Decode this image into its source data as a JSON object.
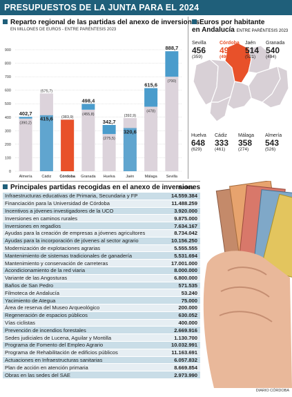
{
  "header": {
    "title": "PRESUPUESTOS DE LA JUNTA PARA EL 2024"
  },
  "chart_section": {
    "title": "Reparto regional de las partidas del anexo de inversiones",
    "subtitle": "EN MILLONES DE EUROS - ENTRE PARÉNTESIS 2023"
  },
  "chart_data": {
    "type": "bar",
    "categories": [
      "Almería",
      "Cádiz",
      "Córdoba",
      "Granada",
      "Huelva",
      "Jaén",
      "Málaga",
      "Sevilla"
    ],
    "series": [
      {
        "values": [
          402.7,
          415.6,
          381.8,
          498.4,
          342.7,
          320.6,
          615.6,
          888.7
        ]
      },
      {
        "values": [
          390.2,
          575.7,
          383.9,
          455.8,
          275.5,
          392.9,
          478,
          700
        ]
      }
    ],
    "value_labels": [
      "402,7",
      "415,6",
      "381,8",
      "498,4",
      "342,7",
      "320,6",
      "615,6",
      "888,7"
    ],
    "prev_labels": [
      "(390,2)",
      "(575,7)",
      "(383,9)",
      "(455,8)",
      "(275,5)",
      "(392,9)",
      "(478)",
      "(700)"
    ],
    "yticks": [
      "0",
      "100",
      "200",
      "300",
      "400",
      "500",
      "600",
      "700",
      "800",
      "900"
    ],
    "ylim": [
      0,
      900
    ],
    "grid": true,
    "colors": {
      "current": "#4a9ccc",
      "previous": "#dcd3db",
      "highlight": "#e8512a"
    }
  },
  "map_section": {
    "title_line1": "Euros por habitante",
    "title_line2": "en Andalucía",
    "subtitle": "ENTRE PARÉNTESIS 2023"
  },
  "cities": [
    {
      "name": "Sevilla",
      "value": "456",
      "prev": "(359)"
    },
    {
      "name": "Córdoba",
      "value": "494",
      "prev": "(496)"
    },
    {
      "name": "Jaén",
      "value": "514",
      "prev": "(521)"
    },
    {
      "name": "Granada",
      "value": "540",
      "prev": "(494)"
    },
    {
      "name": "Huelva",
      "value": "648",
      "prev": "(629)"
    },
    {
      "name": "Cádiz",
      "value": "333",
      "prev": "(461)"
    },
    {
      "name": "Málaga",
      "value": "358",
      "prev": "(274)"
    },
    {
      "name": "Almería",
      "value": "543",
      "prev": "(526)"
    }
  ],
  "table_section": {
    "title": "Principales partidas recogidas en el anexo de inversiones",
    "column_header": "EUROS"
  },
  "table_rows": [
    {
      "label": "Infraestructuras educativas de Primaria, Secundaria y FP",
      "amount": "14.559.384"
    },
    {
      "label": "Financiación para la Universidad de Córdoba",
      "amount": "11.488.259"
    },
    {
      "label": "Incentivos a jóvenes investigadores de la UCO",
      "amount": "3.920.000"
    },
    {
      "label": "Inversiones en caminos rurales",
      "amount": "9.875.000"
    },
    {
      "label": "Inversiones en regadíos",
      "amount": "7.634.167"
    },
    {
      "label": "Ayudas para la creación de empresas a jóvenes agricultores",
      "amount": "8.734.042"
    },
    {
      "label": "Ayudas para la incorporación de jóvenes al sector agrario",
      "amount": "10.156.250"
    },
    {
      "label": "Modernización de explotaciones agrarias",
      "amount": "5.555.555"
    },
    {
      "label": "Mantenimiento de sistemas tradicionales de ganadería",
      "amount": "5.531.694"
    },
    {
      "label": "Mantenimiento y conservación de carreteras",
      "amount": "17.001.000"
    },
    {
      "label": "Acondicionamiento de la red viaria",
      "amount": "8.000.000"
    },
    {
      "label": "Variante de las Angosturas",
      "amount": "6.800.000"
    },
    {
      "label": "Baños de San Pedro",
      "amount": "571.535"
    },
    {
      "label": "Filmoteca de Andalucía",
      "amount": "53.240"
    },
    {
      "label": "Yacimiento de Ategua",
      "amount": "75.000"
    },
    {
      "label": "Área de reserva del Museo Arqueológico",
      "amount": "200.000"
    },
    {
      "label": "Regeneración de espacios públicos",
      "amount": "630.052"
    },
    {
      "label": "Vías ciclistas",
      "amount": "400.000"
    },
    {
      "label": "Prevención de incendios forestales",
      "amount": "2.669.916"
    },
    {
      "label": "Sedes judiciales de Lucena, Aguilar y Montilla",
      "amount": "1.130.700"
    },
    {
      "label": "Programa de Fomento del Empleo Agrario",
      "amount": "10.032.991"
    },
    {
      "label": "Programa de Rehabilitación de edificios públicos",
      "amount": "11.163.691"
    },
    {
      "label": "Actuaciones en Infraestructuras sanitarias",
      "amount": "6.057.832"
    },
    {
      "label": "Plan de acción en atención primaria",
      "amount": "8.669.854"
    },
    {
      "label": "Obras en las sedes del SAE",
      "amount": "2.973.990"
    }
  ],
  "credit": "DIARIO CÓRDOBA"
}
